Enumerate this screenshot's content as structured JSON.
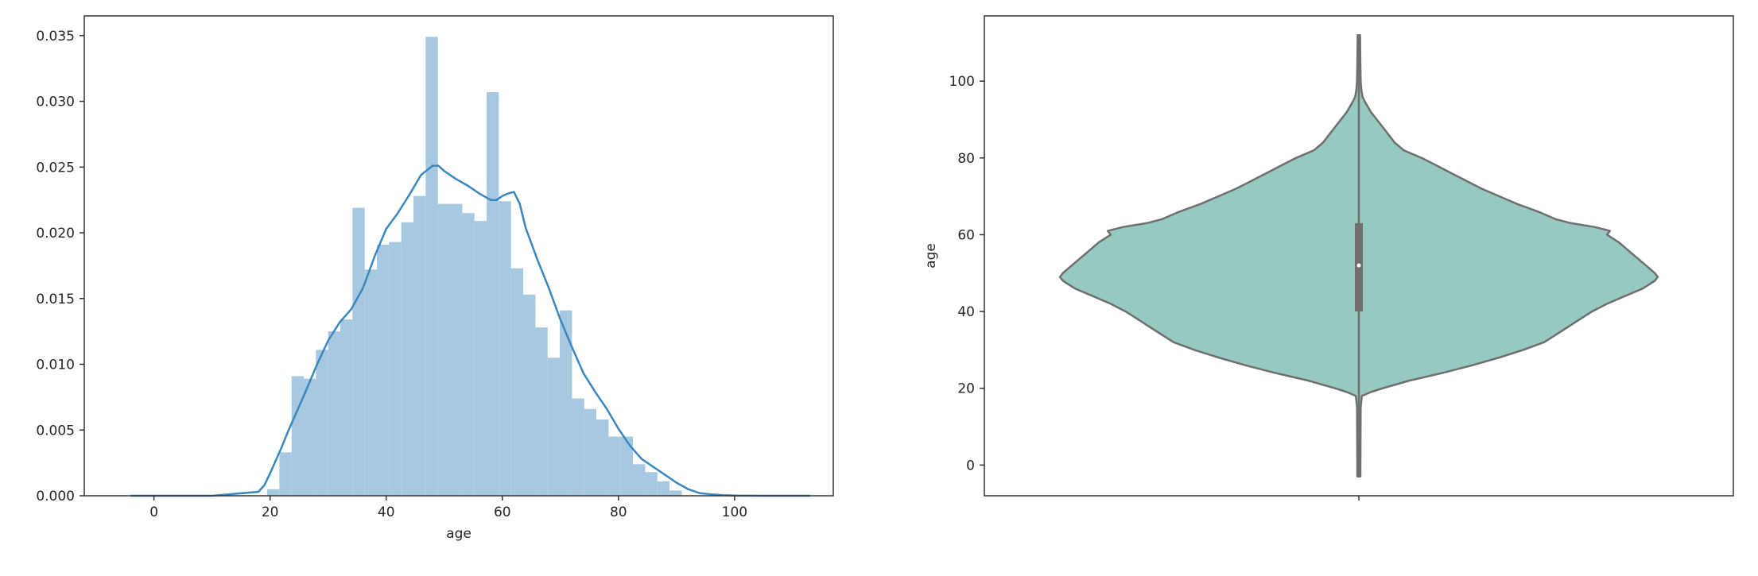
{
  "chart_data": [
    {
      "type": "histogram",
      "xlabel": "age",
      "ylabel": "",
      "xlim": [
        -12,
        117
      ],
      "ylim": [
        0,
        0.0365
      ],
      "xticks": [
        0,
        20,
        40,
        60,
        80,
        100
      ],
      "xtick_labels": [
        "0",
        "20",
        "40",
        "60",
        "80",
        "100"
      ],
      "yticks": [
        0,
        0.005,
        0.01,
        0.015,
        0.02,
        0.025,
        0.03,
        0.035
      ],
      "ytick_labels": [
        "0.000",
        "0.005",
        "0.010",
        "0.015",
        "0.020",
        "0.025",
        "0.030",
        "0.035"
      ],
      "grid": false,
      "bin_width": 2.1,
      "bins": [
        {
          "x0": 19.5,
          "value": 0.0005
        },
        {
          "x0": 21.6,
          "value": 0.0033
        },
        {
          "x0": 23.7,
          "value": 0.0091
        },
        {
          "x0": 25.8,
          "value": 0.0089
        },
        {
          "x0": 27.9,
          "value": 0.0111
        },
        {
          "x0": 30.0,
          "value": 0.0125
        },
        {
          "x0": 32.1,
          "value": 0.0134
        },
        {
          "x0": 34.2,
          "value": 0.0219
        },
        {
          "x0": 36.3,
          "value": 0.0172
        },
        {
          "x0": 38.4,
          "value": 0.0191
        },
        {
          "x0": 40.5,
          "value": 0.0193
        },
        {
          "x0": 42.6,
          "value": 0.0208
        },
        {
          "x0": 44.7,
          "value": 0.0228
        },
        {
          "x0": 46.8,
          "value": 0.0349
        },
        {
          "x0": 48.9,
          "value": 0.0222
        },
        {
          "x0": 51.0,
          "value": 0.0222
        },
        {
          "x0": 53.1,
          "value": 0.0215
        },
        {
          "x0": 55.2,
          "value": 0.0209
        },
        {
          "x0": 57.3,
          "value": 0.0307
        },
        {
          "x0": 59.4,
          "value": 0.0224
        },
        {
          "x0": 61.5,
          "value": 0.0173
        },
        {
          "x0": 63.6,
          "value": 0.0153
        },
        {
          "x0": 65.7,
          "value": 0.0128
        },
        {
          "x0": 67.8,
          "value": 0.0105
        },
        {
          "x0": 69.9,
          "value": 0.0141
        },
        {
          "x0": 72.0,
          "value": 0.0074
        },
        {
          "x0": 74.1,
          "value": 0.0066
        },
        {
          "x0": 76.2,
          "value": 0.0058
        },
        {
          "x0": 78.3,
          "value": 0.0045
        },
        {
          "x0": 80.4,
          "value": 0.0045
        },
        {
          "x0": 82.5,
          "value": 0.0024
        },
        {
          "x0": 84.6,
          "value": 0.0018
        },
        {
          "x0": 86.7,
          "value": 0.0011
        },
        {
          "x0": 88.8,
          "value": 0.0004
        }
      ],
      "kde": {
        "x": [
          -4,
          10,
          18,
          19,
          20,
          21,
          22,
          23,
          24,
          26,
          28,
          30,
          32,
          34,
          36,
          38,
          40,
          42,
          44,
          46,
          48,
          49,
          50,
          52,
          54,
          56,
          58,
          59,
          60,
          61,
          62,
          63,
          64,
          66,
          68,
          70,
          72,
          74,
          76,
          78,
          80,
          82,
          84,
          86,
          88,
          90,
          92,
          94,
          96,
          98,
          100,
          105,
          113
        ],
        "y": [
          0,
          0,
          0.0003,
          0.0008,
          0.0017,
          0.0027,
          0.0037,
          0.0048,
          0.0058,
          0.0078,
          0.0099,
          0.0118,
          0.0132,
          0.0142,
          0.0158,
          0.0182,
          0.0203,
          0.0215,
          0.0229,
          0.0244,
          0.0251,
          0.0251,
          0.0247,
          0.0241,
          0.0236,
          0.023,
          0.0225,
          0.0225,
          0.0228,
          0.023,
          0.0231,
          0.0222,
          0.0204,
          0.018,
          0.0158,
          0.0134,
          0.0113,
          0.0093,
          0.0079,
          0.0066,
          0.0051,
          0.0038,
          0.0028,
          0.0022,
          0.0016,
          0.001,
          0.0005,
          0.0002,
          0.0001,
          5e-05,
          2e-05,
          0,
          0
        ]
      },
      "colors": {
        "bars": "#a6c8e0",
        "kde": "#3a87bf",
        "axes": "#333333"
      }
    },
    {
      "type": "violin",
      "xlabel": "",
      "ylabel": "age",
      "ylim": [
        -8,
        117
      ],
      "yticks": [
        0,
        20,
        40,
        60,
        80,
        100
      ],
      "ytick_labels": [
        "0",
        "20",
        "40",
        "60",
        "80",
        "100"
      ],
      "grid": false,
      "density_profile": {
        "age": [
          -3,
          15,
          18,
          19,
          20,
          22,
          24,
          26,
          28,
          30,
          32,
          34,
          36,
          38,
          40,
          42,
          44,
          46,
          48,
          49,
          50,
          52,
          54,
          56,
          58,
          60,
          61,
          62,
          63,
          64,
          66,
          68,
          70,
          72,
          74,
          76,
          78,
          80,
          82,
          84,
          86,
          88,
          90,
          92,
          94,
          95,
          96,
          98,
          100,
          105,
          112
        ],
        "half_width": [
          0.005,
          0.006,
          0.01,
          0.04,
          0.08,
          0.17,
          0.28,
          0.38,
          0.47,
          0.55,
          0.62,
          0.66,
          0.7,
          0.74,
          0.78,
          0.83,
          0.89,
          0.95,
          0.99,
          1.0,
          0.99,
          0.96,
          0.93,
          0.9,
          0.87,
          0.83,
          0.84,
          0.79,
          0.71,
          0.66,
          0.6,
          0.53,
          0.47,
          0.41,
          0.36,
          0.31,
          0.26,
          0.21,
          0.15,
          0.12,
          0.1,
          0.08,
          0.06,
          0.04,
          0.025,
          0.018,
          0.012,
          0.008,
          0.006,
          0.005,
          0.004
        ]
      },
      "whisker": [
        -3,
        112
      ],
      "quartiles": [
        40,
        52,
        63
      ],
      "median": 52,
      "colors": {
        "fill": "#96c9bf",
        "outline": "#6f6f6f",
        "box": "#6f6f6f",
        "median_dot": "#ffffff",
        "axes": "#333333"
      }
    }
  ]
}
